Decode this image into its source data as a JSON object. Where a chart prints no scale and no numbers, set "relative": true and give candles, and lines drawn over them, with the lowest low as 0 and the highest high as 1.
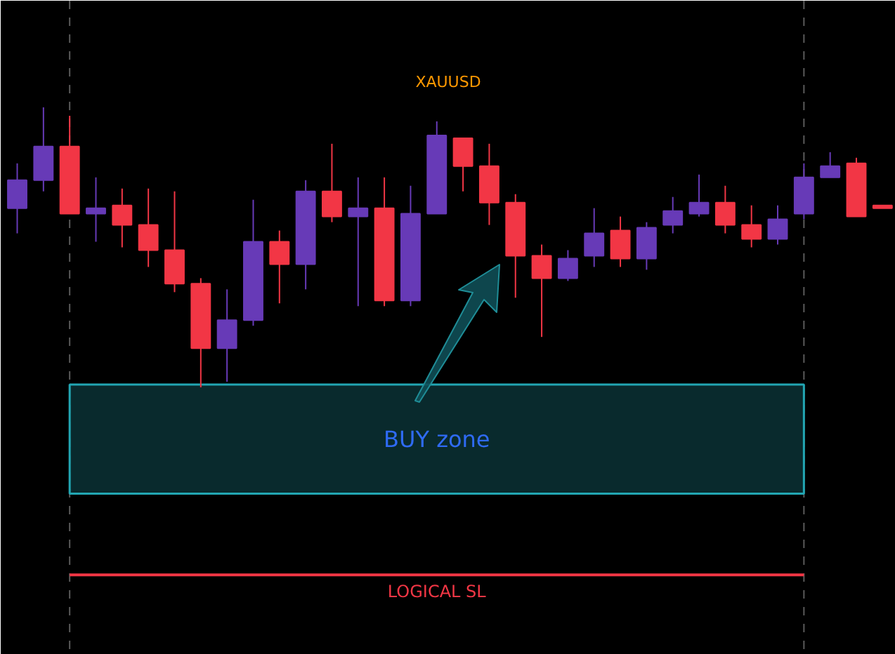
{
  "chart_data": {
    "type": "candlestick",
    "title": "XAUUSD",
    "relative": true,
    "categories": [
      null,
      null,
      null,
      null,
      null,
      null,
      null,
      null,
      null,
      null,
      null,
      null,
      null,
      null,
      null,
      null,
      null,
      null,
      null,
      null,
      null,
      null,
      null,
      null,
      null,
      null,
      null,
      null,
      null,
      null,
      null,
      null,
      null,
      null
    ],
    "ohlc": [
      [
        0.64,
        0.8,
        0.55,
        0.74
      ],
      [
        0.74,
        1.0,
        0.7,
        0.86
      ],
      [
        0.86,
        0.97,
        0.62,
        0.62
      ],
      [
        0.62,
        0.75,
        0.52,
        0.64
      ],
      [
        0.65,
        0.71,
        0.5,
        0.58
      ],
      [
        0.58,
        0.71,
        0.43,
        0.49
      ],
      [
        0.49,
        0.7,
        0.34,
        0.37
      ],
      [
        0.37,
        0.39,
        0.0,
        0.14
      ],
      [
        0.14,
        0.35,
        0.02,
        0.24
      ],
      [
        0.24,
        0.67,
        0.22,
        0.52
      ],
      [
        0.52,
        0.56,
        0.3,
        0.44
      ],
      [
        0.44,
        0.74,
        0.35,
        0.7
      ],
      [
        0.7,
        0.87,
        0.59,
        0.61
      ],
      [
        0.61,
        0.75,
        0.29,
        0.64
      ],
      [
        0.64,
        0.75,
        0.29,
        0.31
      ],
      [
        0.31,
        0.72,
        0.29,
        0.62
      ],
      [
        0.62,
        0.95,
        0.62,
        0.9
      ],
      [
        0.89,
        0.89,
        0.7,
        0.79
      ],
      [
        0.79,
        0.87,
        0.58,
        0.66
      ],
      [
        0.66,
        0.69,
        0.32,
        0.47
      ],
      [
        0.47,
        0.51,
        0.18,
        0.39
      ],
      [
        0.39,
        0.49,
        0.38,
        0.46
      ],
      [
        0.47,
        0.64,
        0.43,
        0.55
      ],
      [
        0.56,
        0.61,
        0.43,
        0.46
      ],
      [
        0.46,
        0.59,
        0.42,
        0.57
      ],
      [
        0.58,
        0.68,
        0.55,
        0.63
      ],
      [
        0.62,
        0.76,
        0.61,
        0.66
      ],
      [
        0.66,
        0.72,
        0.55,
        0.58
      ],
      [
        0.58,
        0.65,
        0.5,
        0.53
      ],
      [
        0.53,
        0.65,
        0.51,
        0.6
      ],
      [
        0.62,
        0.8,
        0.6,
        0.75
      ],
      [
        0.75,
        0.84,
        0.75,
        0.79
      ],
      [
        0.8,
        0.82,
        0.61,
        0.61
      ],
      [
        0.65,
        0.65,
        0.64,
        0.64
      ]
    ],
    "colors": [
      "#673ab7",
      "#673ab7",
      "#f23645",
      "#673ab7",
      "#f23645",
      "#f23645",
      "#f23645",
      "#f23645",
      "#673ab7",
      "#673ab7",
      "#f23645",
      "#673ab7",
      "#f23645",
      "#673ab7",
      "#f23645",
      "#673ab7",
      "#673ab7",
      "#f23645",
      "#f23645",
      "#f23645",
      "#f23645",
      "#673ab7",
      "#673ab7",
      "#f23645",
      "#673ab7",
      "#673ab7",
      "#673ab7",
      "#f23645",
      "#f23645",
      "#673ab7",
      "#673ab7",
      "#673ab7",
      "#f23645",
      "#f23645"
    ],
    "bands": [
      {
        "axis": "y",
        "from": -0.38,
        "to": 0.01,
        "label": "BUY zone",
        "color": "#22a6b3"
      }
    ],
    "ref_lines": [
      {
        "axis": "y",
        "value": -0.67,
        "label": "LOGICAL SL",
        "color": "#f23645"
      }
    ]
  }
}
